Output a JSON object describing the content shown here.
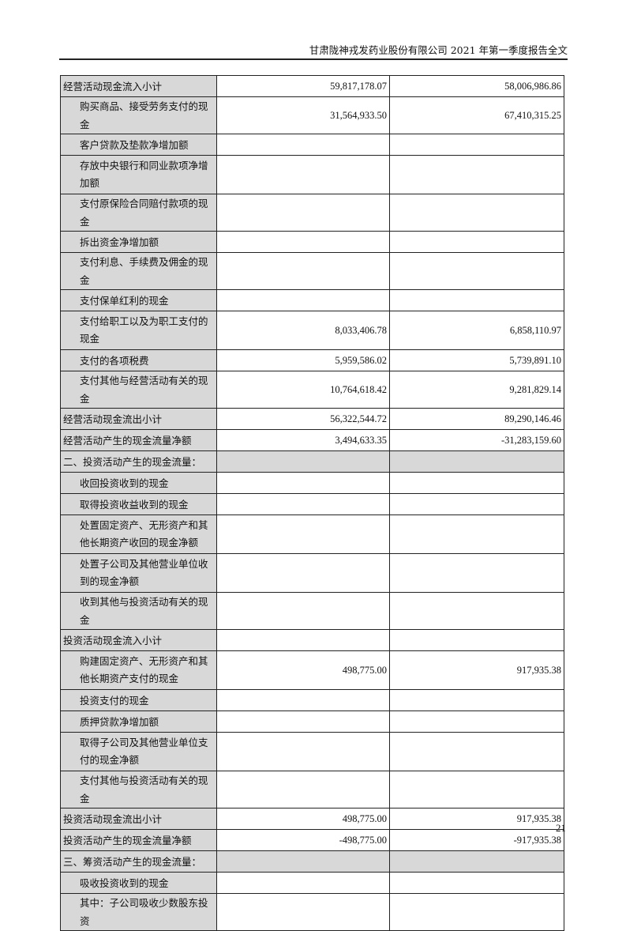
{
  "header": {
    "title": "甘肃陇神戎发药业股份有限公司 2021 年第一季度报告全文"
  },
  "rows": [
    {
      "label": "经营活动现金流入小计",
      "indent": false,
      "current": "59,817,178.07",
      "previous": "58,006,986.86"
    },
    {
      "label": "购买商品、接受劳务支付的现金",
      "indent": true,
      "current": "31,564,933.50",
      "previous": "67,410,315.25"
    },
    {
      "label": "客户贷款及垫款净增加额",
      "indent": true,
      "current": "",
      "previous": ""
    },
    {
      "label": "存放中央银行和同业款项净增加额",
      "indent": true,
      "double": true,
      "current": "",
      "previous": ""
    },
    {
      "label": "支付原保险合同赔付款项的现金",
      "indent": true,
      "current": "",
      "previous": ""
    },
    {
      "label": "拆出资金净增加额",
      "indent": true,
      "current": "",
      "previous": ""
    },
    {
      "label": "支付利息、手续费及佣金的现金",
      "indent": true,
      "current": "",
      "previous": ""
    },
    {
      "label": "支付保单红利的现金",
      "indent": true,
      "current": "",
      "previous": ""
    },
    {
      "label": "支付给职工以及为职工支付的现金",
      "indent": true,
      "double": true,
      "current": "8,033,406.78",
      "previous": "6,858,110.97"
    },
    {
      "label": "支付的各项税费",
      "indent": true,
      "current": "5,959,586.02",
      "previous": "5,739,891.10"
    },
    {
      "label": "支付其他与经营活动有关的现金",
      "indent": true,
      "current": "10,764,618.42",
      "previous": "9,281,829.14"
    },
    {
      "label": "经营活动现金流出小计",
      "indent": false,
      "current": "56,322,544.72",
      "previous": "89,290,146.46"
    },
    {
      "label": "经营活动产生的现金流量净额",
      "indent": false,
      "current": "3,494,633.35",
      "previous": "-31,283,159.60"
    },
    {
      "label": "二、投资活动产生的现金流量：",
      "indent": false,
      "section": true,
      "current": "",
      "previous": ""
    },
    {
      "label": "收回投资收到的现金",
      "indent": true,
      "current": "",
      "previous": ""
    },
    {
      "label": "取得投资收益收到的现金",
      "indent": true,
      "current": "",
      "previous": ""
    },
    {
      "label": "处置固定资产、无形资产和其他长期资产收回的现金净额",
      "indent": true,
      "double": true,
      "current": "",
      "previous": ""
    },
    {
      "label": "处置子公司及其他营业单位收到的现金净额",
      "indent": true,
      "double": true,
      "current": "",
      "previous": ""
    },
    {
      "label": "收到其他与投资活动有关的现金",
      "indent": true,
      "current": "",
      "previous": ""
    },
    {
      "label": "投资活动现金流入小计",
      "indent": false,
      "current": "",
      "previous": ""
    },
    {
      "label": "购建固定资产、无形资产和其他长期资产支付的现金",
      "indent": true,
      "double": true,
      "current": "498,775.00",
      "previous": "917,935.38"
    },
    {
      "label": "投资支付的现金",
      "indent": true,
      "current": "",
      "previous": ""
    },
    {
      "label": "质押贷款净增加额",
      "indent": true,
      "current": "",
      "previous": ""
    },
    {
      "label": "取得子公司及其他营业单位支付的现金净额",
      "indent": true,
      "double": true,
      "current": "",
      "previous": ""
    },
    {
      "label": "支付其他与投资活动有关的现金",
      "indent": true,
      "current": "",
      "previous": ""
    },
    {
      "label": "投资活动现金流出小计",
      "indent": false,
      "current": "498,775.00",
      "previous": "917,935.38"
    },
    {
      "label": "投资活动产生的现金流量净额",
      "indent": false,
      "current": "-498,775.00",
      "previous": "-917,935.38"
    },
    {
      "label": "三、筹资活动产生的现金流量：",
      "indent": false,
      "section": true,
      "current": "",
      "previous": ""
    },
    {
      "label": "吸收投资收到的现金",
      "indent": true,
      "current": "",
      "previous": ""
    },
    {
      "label": "其中：子公司吸收少数股东投资",
      "indent": true,
      "current": "",
      "previous": ""
    }
  ],
  "footer": {
    "page_number": "21"
  }
}
